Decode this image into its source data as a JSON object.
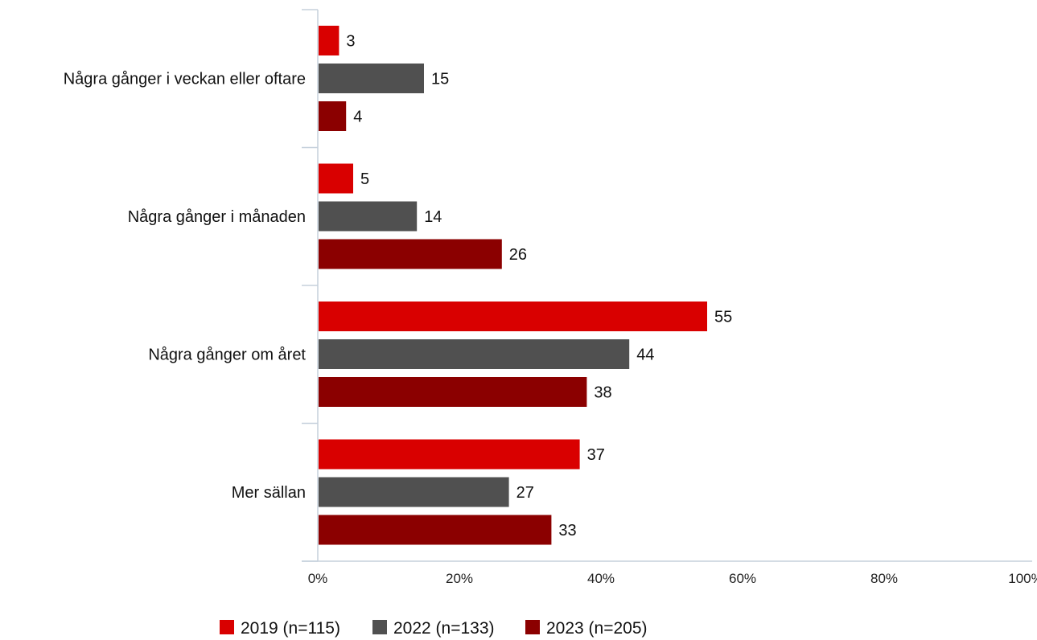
{
  "chart_data": {
    "type": "bar",
    "orientation": "horizontal",
    "categories": [
      "Några gånger i veckan eller oftare",
      "Några gånger i månaden",
      "Några gånger om året",
      "Mer sällan"
    ],
    "series": [
      {
        "name": "2019 (n=115)",
        "values": [
          3,
          5,
          55,
          37
        ],
        "color": "#d90000"
      },
      {
        "name": "2022 (n=133)",
        "values": [
          15,
          14,
          44,
          27
        ],
        "color": "#505050"
      },
      {
        "name": "2023 (n=205)",
        "values": [
          4,
          26,
          38,
          33
        ],
        "color": "#8b0000"
      }
    ],
    "xticks": [
      "0%",
      "20%",
      "40%",
      "60%",
      "80%",
      "100%"
    ],
    "xlim": [
      0,
      100
    ],
    "legend_position": "bottom",
    "grid": false
  }
}
